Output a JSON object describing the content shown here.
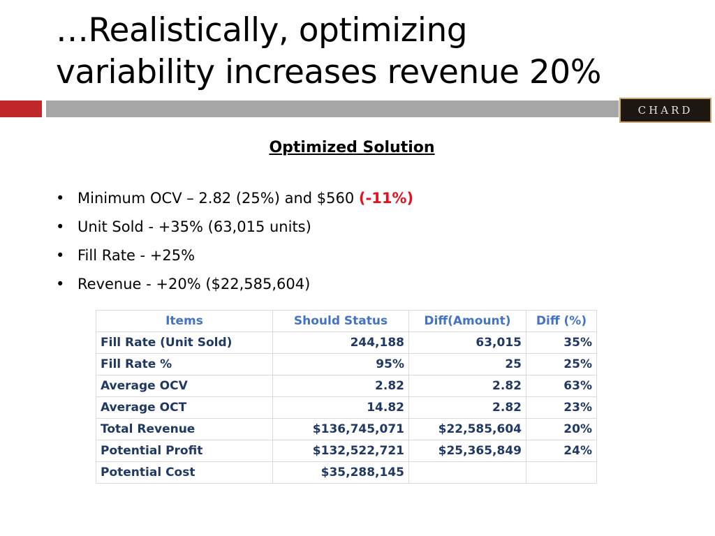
{
  "title_lines": [
    "…Realistically, optimizing",
    "variability increases revenue 20%"
  ],
  "logo_text": "CHARD",
  "subtitle": "Optimized Solution",
  "bullets": [
    {
      "text": "Minimum OCV – 2.82 (25%) and $560 ",
      "highlight": "(-11%)"
    },
    {
      "text": "Unit Sold - +35% (63,015 units)"
    },
    {
      "text": "Fill Rate - +25%"
    },
    {
      "text": "Revenue - +20% ($22,585,604)"
    }
  ],
  "bullet_char": "•",
  "table": {
    "headers": [
      "Items",
      "Should Status",
      "Diff(Amount)",
      "Diff (%)"
    ],
    "rows": [
      [
        "Fill Rate (Unit Sold)",
        "244,188",
        "63,015",
        "35%"
      ],
      [
        "Fill Rate %",
        "95%",
        "25",
        "25%"
      ],
      [
        "Average OCV",
        "2.82",
        "2.82",
        "63%"
      ],
      [
        "Average OCT",
        "14.82",
        "2.82",
        "23%"
      ],
      [
        "Total Revenue",
        "$136,745,071",
        "$22,585,604",
        "20%"
      ],
      [
        "Potential Profit",
        "$132,522,721",
        "$25,365,849",
        "24%"
      ],
      [
        "Potential Cost",
        "$35,288,145",
        "",
        ""
      ]
    ]
  },
  "colors": {
    "accent_red": "#c0282b",
    "bar_gray": "#a6a6a6",
    "highlight_red": "#e3111c",
    "header_blue": "#4472c4",
    "cell_navy": "#1f3864"
  }
}
